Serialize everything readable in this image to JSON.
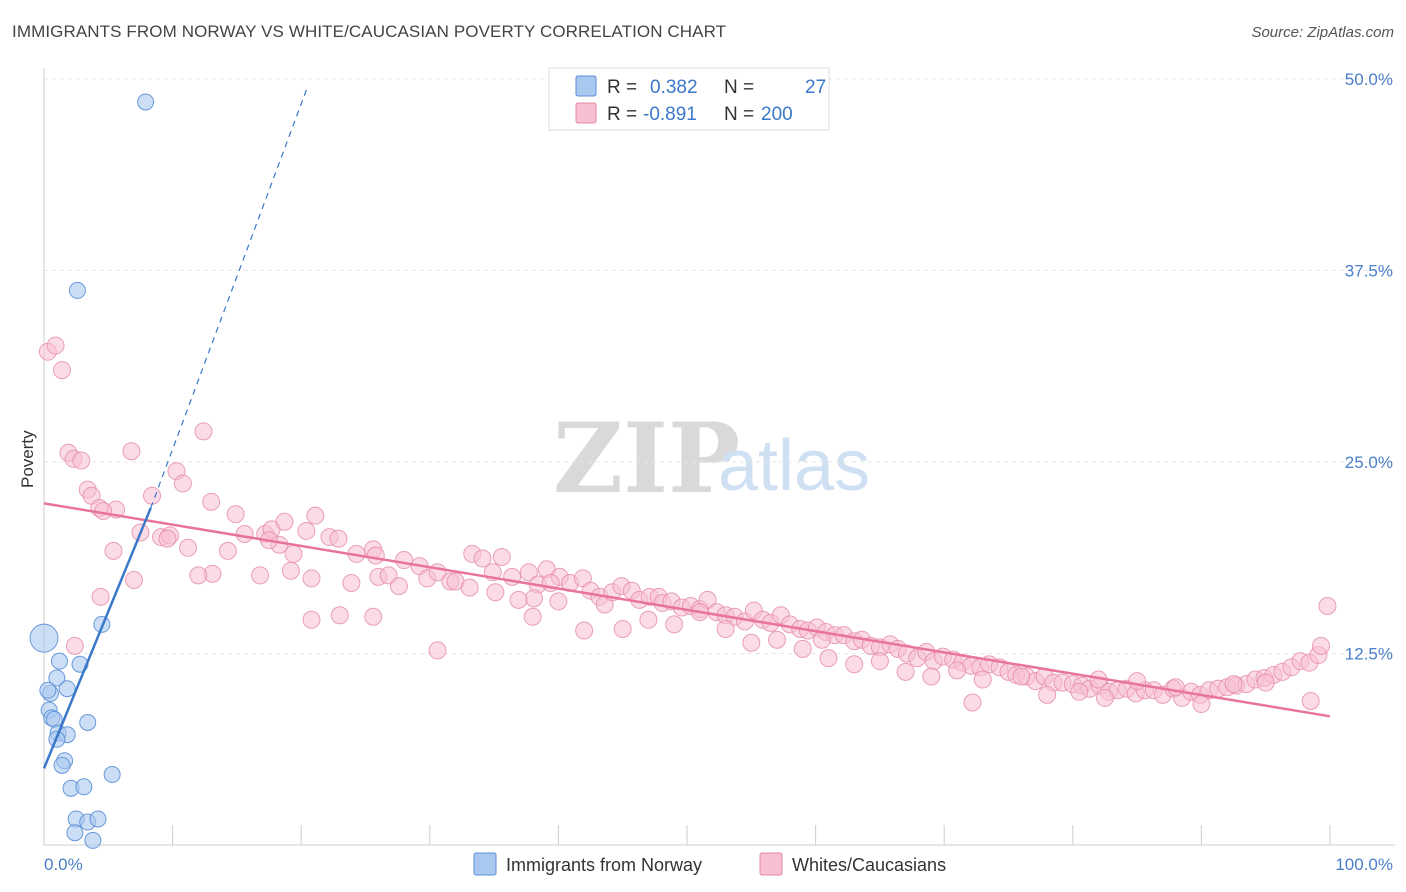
{
  "title": "IMMIGRANTS FROM NORWAY VS WHITE/CAUCASIAN POVERTY CORRELATION CHART",
  "source": "Source: ZipAtlas.com",
  "watermark": {
    "zip": "ZIP",
    "atlas": "atlas"
  },
  "legend": {
    "r_label": "R =",
    "n_label": "N =",
    "rows": [
      {
        "r": "0.382",
        "n": "27",
        "color": "#a9c8f0",
        "stroke": "#5b8fd6"
      },
      {
        "r": "-0.891",
        "n": "200",
        "color": "#f7bfd2",
        "stroke": "#e58aa9"
      }
    ]
  },
  "bottom_legend": [
    "Immigrants from Norway",
    "Whites/Caucasians"
  ],
  "chart_data": {
    "type": "scatter",
    "title": "IMMIGRANTS FROM NORWAY VS WHITE/CAUCASIAN POVERTY CORRELATION CHART",
    "xlabel": "",
    "ylabel": "Poverty",
    "xlim": [
      0,
      100
    ],
    "ylim": [
      0,
      52
    ],
    "x_ticks": [
      "0.0%",
      "100.0%"
    ],
    "y_ticks": [
      {
        "v": 12.5,
        "label": "12.5%"
      },
      {
        "v": 25.0,
        "label": "25.0%"
      },
      {
        "v": 37.5,
        "label": "37.5%"
      },
      {
        "v": 50.0,
        "label": "50.0%"
      }
    ],
    "grid": true,
    "series": [
      {
        "name": "Immigrants from Norway",
        "color": "#a9c8f0",
        "stroke": "#5b8fd6",
        "trend": {
          "x0": 0,
          "y0": 5.0,
          "x1": 8.3,
          "y1": 22.0,
          "dash_to_x": 20.5,
          "dash_to_y": 49.5,
          "color": "#3a78c9"
        },
        "points": [
          [
            0.0,
            13.5,
            14
          ],
          [
            7.9,
            48.5,
            8
          ],
          [
            2.6,
            36.2,
            8
          ],
          [
            1.2,
            12.0,
            8
          ],
          [
            2.8,
            11.8,
            8
          ],
          [
            1.0,
            10.9,
            8
          ],
          [
            0.5,
            9.9,
            8
          ],
          [
            1.8,
            10.2,
            8
          ],
          [
            0.4,
            8.8,
            8
          ],
          [
            0.6,
            8.3,
            8
          ],
          [
            0.8,
            8.2,
            8
          ],
          [
            3.4,
            8.0,
            8
          ],
          [
            1.1,
            7.3,
            8
          ],
          [
            1.8,
            7.2,
            8
          ],
          [
            4.5,
            14.4,
            8
          ],
          [
            1.6,
            5.5,
            8
          ],
          [
            1.4,
            5.2,
            8
          ],
          [
            5.3,
            4.6,
            8
          ],
          [
            2.1,
            3.7,
            8
          ],
          [
            3.1,
            3.8,
            8
          ],
          [
            2.5,
            1.7,
            8
          ],
          [
            3.4,
            1.5,
            8
          ],
          [
            4.2,
            1.7,
            8
          ],
          [
            2.4,
            0.8,
            8
          ],
          [
            3.8,
            0.3,
            8
          ],
          [
            0.3,
            10.1,
            8
          ],
          [
            1.0,
            6.9,
            8
          ]
        ]
      },
      {
        "name": "Whites/Caucasians",
        "color": "#f7bfd2",
        "stroke": "#e58aa9",
        "trend": {
          "x0": 0,
          "y0": 22.3,
          "x1": 100,
          "y1": 8.4,
          "color": "#e8739c"
        },
        "points": [
          [
            0.3,
            32.2
          ],
          [
            0.9,
            32.6
          ],
          [
            1.4,
            31.0
          ],
          [
            1.9,
            25.6
          ],
          [
            2.3,
            25.2
          ],
          [
            2.9,
            25.1
          ],
          [
            3.4,
            23.2
          ],
          [
            3.7,
            22.8
          ],
          [
            4.3,
            22.0
          ],
          [
            5.6,
            21.9
          ],
          [
            4.6,
            21.8
          ],
          [
            6.8,
            25.7
          ],
          [
            8.4,
            22.8
          ],
          [
            10.3,
            24.4
          ],
          [
            12.4,
            27.0
          ],
          [
            10.8,
            23.6
          ],
          [
            13.0,
            22.4
          ],
          [
            14.9,
            21.6
          ],
          [
            15.6,
            20.3
          ],
          [
            9.1,
            20.1
          ],
          [
            9.8,
            20.2
          ],
          [
            7.5,
            20.4
          ],
          [
            5.4,
            19.2
          ],
          [
            9.6,
            20.0
          ],
          [
            11.2,
            19.4
          ],
          [
            14.3,
            19.2
          ],
          [
            17.2,
            20.3
          ],
          [
            17.7,
            20.6
          ],
          [
            18.7,
            21.1
          ],
          [
            19.4,
            19.0
          ],
          [
            20.4,
            20.5
          ],
          [
            21.1,
            21.5
          ],
          [
            19.2,
            17.9
          ],
          [
            18.3,
            19.6
          ],
          [
            22.2,
            20.1
          ],
          [
            22.9,
            20.0
          ],
          [
            24.3,
            19.0
          ],
          [
            25.6,
            19.3
          ],
          [
            25.8,
            18.9
          ],
          [
            26.0,
            17.5
          ],
          [
            20.8,
            17.4
          ],
          [
            23.9,
            17.1
          ],
          [
            26.8,
            17.6
          ],
          [
            28.0,
            18.6
          ],
          [
            27.6,
            16.9
          ],
          [
            29.2,
            18.2
          ],
          [
            29.8,
            17.4
          ],
          [
            30.6,
            17.8
          ],
          [
            31.6,
            17.2
          ],
          [
            32.0,
            17.2
          ],
          [
            33.3,
            19.0
          ],
          [
            34.1,
            18.7
          ],
          [
            34.9,
            17.8
          ],
          [
            33.1,
            16.8
          ],
          [
            35.6,
            18.8
          ],
          [
            36.4,
            17.5
          ],
          [
            37.7,
            17.8
          ],
          [
            38.4,
            17.0
          ],
          [
            39.1,
            18.0
          ],
          [
            40.1,
            17.5
          ],
          [
            40.9,
            17.1
          ],
          [
            41.9,
            17.4
          ],
          [
            39.4,
            17.1
          ],
          [
            38.1,
            16.1
          ],
          [
            36.9,
            16.0
          ],
          [
            35.1,
            16.5
          ],
          [
            42.5,
            16.6
          ],
          [
            43.2,
            16.2
          ],
          [
            43.6,
            15.7
          ],
          [
            44.2,
            16.5
          ],
          [
            44.9,
            16.9
          ],
          [
            45.7,
            16.6
          ],
          [
            46.3,
            16.0
          ],
          [
            47.1,
            16.2
          ],
          [
            47.8,
            16.2
          ],
          [
            48.1,
            15.8
          ],
          [
            48.8,
            15.9
          ],
          [
            49.6,
            15.5
          ],
          [
            50.3,
            15.6
          ],
          [
            51.0,
            15.4
          ],
          [
            51.6,
            16.0
          ],
          [
            52.3,
            15.2
          ],
          [
            53.0,
            15.0
          ],
          [
            53.7,
            14.9
          ],
          [
            54.5,
            14.6
          ],
          [
            55.2,
            15.3
          ],
          [
            55.9,
            14.7
          ],
          [
            56.5,
            14.5
          ],
          [
            57.3,
            15.0
          ],
          [
            58.0,
            14.4
          ],
          [
            58.8,
            14.1
          ],
          [
            59.4,
            14.0
          ],
          [
            60.1,
            14.2
          ],
          [
            60.8,
            13.9
          ],
          [
            61.5,
            13.7
          ],
          [
            62.2,
            13.7
          ],
          [
            63.0,
            13.3
          ],
          [
            63.6,
            13.4
          ],
          [
            64.3,
            13.0
          ],
          [
            65.0,
            12.9
          ],
          [
            65.8,
            13.1
          ],
          [
            66.4,
            12.8
          ],
          [
            67.1,
            12.5
          ],
          [
            67.9,
            12.2
          ],
          [
            68.6,
            12.6
          ],
          [
            69.2,
            12.0
          ],
          [
            69.9,
            12.3
          ],
          [
            70.7,
            12.1
          ],
          [
            71.4,
            11.9
          ],
          [
            72.1,
            11.7
          ],
          [
            72.8,
            11.6
          ],
          [
            73.5,
            11.8
          ],
          [
            74.3,
            11.6
          ],
          [
            75.0,
            11.3
          ],
          [
            75.6,
            11.1
          ],
          [
            76.4,
            11.0
          ],
          [
            77.1,
            10.7
          ],
          [
            77.8,
            11.0
          ],
          [
            78.5,
            10.6
          ],
          [
            79.2,
            10.6
          ],
          [
            80.0,
            10.5
          ],
          [
            80.7,
            10.4
          ],
          [
            81.3,
            10.2
          ],
          [
            82.1,
            10.4
          ],
          [
            82.8,
            10.0
          ],
          [
            83.5,
            10.1
          ],
          [
            84.2,
            10.2
          ],
          [
            84.9,
            9.9
          ],
          [
            85.6,
            10.1
          ],
          [
            86.3,
            10.1
          ],
          [
            87.0,
            9.8
          ],
          [
            87.8,
            10.2
          ],
          [
            88.5,
            9.6
          ],
          [
            89.2,
            10.0
          ],
          [
            89.9,
            9.8
          ],
          [
            90.6,
            10.1
          ],
          [
            91.3,
            10.2
          ],
          [
            92.0,
            10.3
          ],
          [
            92.7,
            10.4
          ],
          [
            93.5,
            10.5
          ],
          [
            94.2,
            10.8
          ],
          [
            94.9,
            10.9
          ],
          [
            95.6,
            11.1
          ],
          [
            96.3,
            11.3
          ],
          [
            97.0,
            11.6
          ],
          [
            97.7,
            12.0
          ],
          [
            98.4,
            11.9
          ],
          [
            99.1,
            12.4
          ],
          [
            99.8,
            15.6
          ],
          [
            99.3,
            13.0
          ],
          [
            95.0,
            10.6
          ],
          [
            92.5,
            10.5
          ],
          [
            90.0,
            9.2
          ],
          [
            88.0,
            10.3
          ],
          [
            85.0,
            10.7
          ],
          [
            82.0,
            10.8
          ],
          [
            80.5,
            10.0
          ],
          [
            78.0,
            9.8
          ],
          [
            76.0,
            11.0
          ],
          [
            73.0,
            10.8
          ],
          [
            71.0,
            11.4
          ],
          [
            69.0,
            11.0
          ],
          [
            67.0,
            11.3
          ],
          [
            65.0,
            12.0
          ],
          [
            63.0,
            11.8
          ],
          [
            61.0,
            12.2
          ],
          [
            59.0,
            12.8
          ],
          [
            57.0,
            13.4
          ],
          [
            55.0,
            13.2
          ],
          [
            53.0,
            14.1
          ],
          [
            51.0,
            15.2
          ],
          [
            49.0,
            14.4
          ],
          [
            47.0,
            14.7
          ],
          [
            45.0,
            14.1
          ],
          [
            42.0,
            14.0
          ],
          [
            40.0,
            15.9
          ],
          [
            38.0,
            14.9
          ],
          [
            30.6,
            12.7
          ],
          [
            25.6,
            14.9
          ],
          [
            23.0,
            15.0
          ],
          [
            20.8,
            14.7
          ],
          [
            17.5,
            19.9
          ],
          [
            16.8,
            17.6
          ],
          [
            13.1,
            17.7
          ],
          [
            12.0,
            17.6
          ],
          [
            7.0,
            17.3
          ],
          [
            4.4,
            16.2
          ],
          [
            2.4,
            13.0
          ],
          [
            60.5,
            13.4
          ],
          [
            72.2,
            9.3
          ],
          [
            82.5,
            9.6
          ],
          [
            98.5,
            9.4
          ]
        ]
      }
    ]
  }
}
